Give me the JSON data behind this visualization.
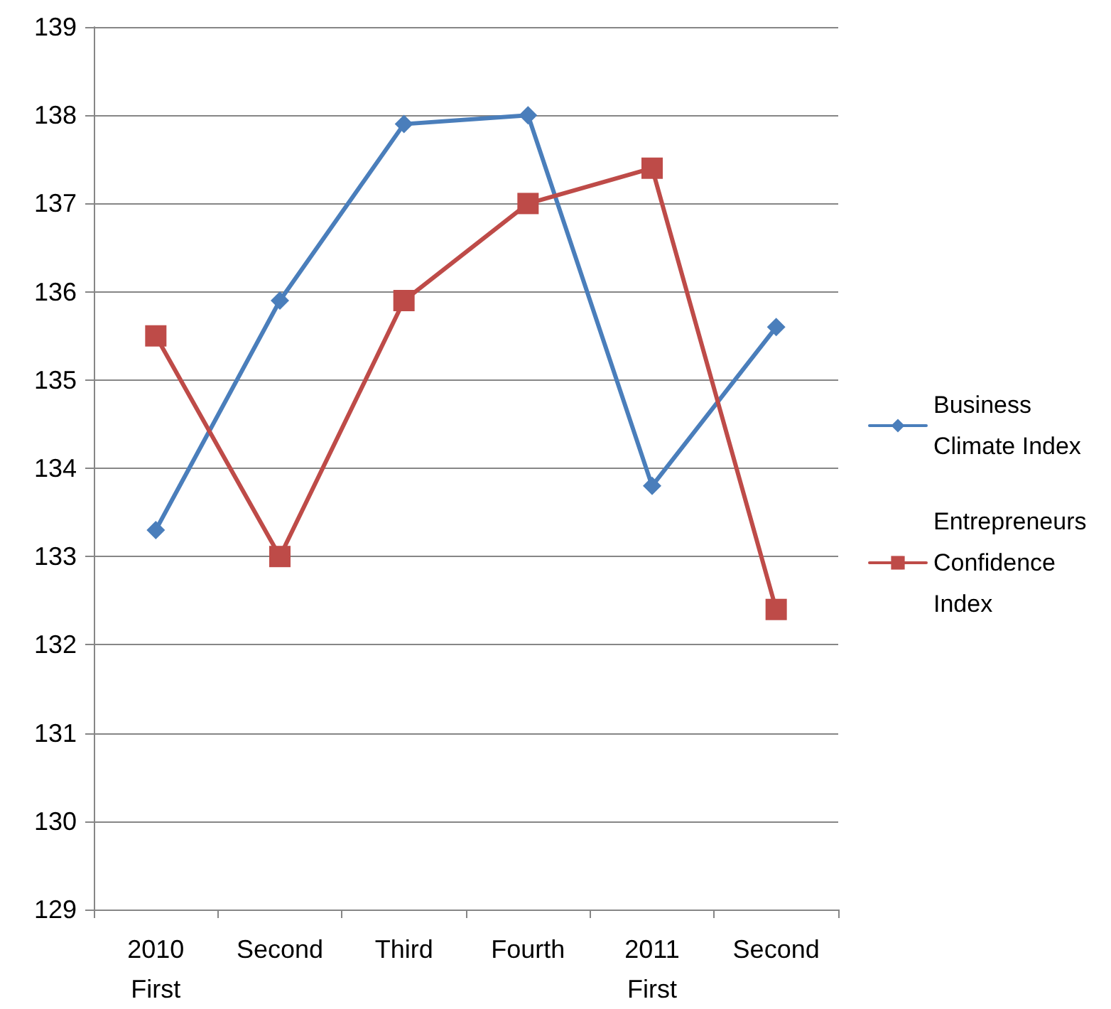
{
  "chart_data": {
    "type": "line",
    "categories": [
      "2010\nFirst",
      "Second",
      "Third",
      "Fourth",
      "2011\nFirst",
      "Second"
    ],
    "series": [
      {
        "name": "Business Climate Index",
        "color": "#4a7ebb",
        "marker": "diamond",
        "values": [
          133.3,
          135.9,
          137.9,
          138.0,
          133.8,
          135.6
        ]
      },
      {
        "name": "Entrepreneurs Confidence Index",
        "color": "#be4b48",
        "marker": "square",
        "values": [
          135.5,
          133.0,
          135.9,
          137.0,
          137.4,
          132.4
        ]
      }
    ],
    "ylim": [
      129,
      139
    ],
    "yticks": [
      129,
      130,
      131,
      132,
      133,
      134,
      135,
      136,
      137,
      138,
      139
    ],
    "grid": "y",
    "legend": "right",
    "line_style": "solid"
  }
}
